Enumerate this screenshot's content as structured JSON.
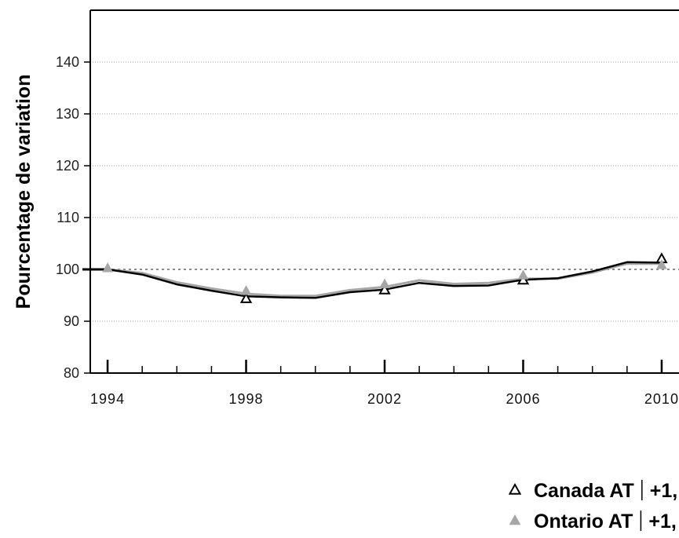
{
  "chart_data": {
    "type": "line",
    "xlabel": "",
    "ylabel": "Pourcentage de variation",
    "xlim": [
      1993.5,
      2010.5
    ],
    "ylim": [
      80,
      150
    ],
    "yticks": [
      80,
      90,
      100,
      110,
      120,
      130,
      140
    ],
    "xticks": [
      1994,
      1998,
      2002,
      2006,
      2010
    ],
    "reference_line": 100,
    "grid": true,
    "legend_position": "bottom-right",
    "series": [
      {
        "name": "Canada AT",
        "legend_value": "+1,",
        "color": "#000000",
        "marker": "open-triangle",
        "x": [
          1994,
          1995,
          1996,
          1997,
          1998,
          1999,
          2000,
          2001,
          2002,
          2003,
          2004,
          2005,
          2006,
          2007,
          2008,
          2009,
          2010
        ],
        "values": [
          100,
          99,
          97.1,
          95.9,
          94.8,
          94.6,
          94.5,
          95.6,
          96.1,
          97.4,
          96.8,
          96.9,
          98,
          98.3,
          99.6,
          101.4,
          101.3
        ],
        "marker_x": [
          1998,
          2002,
          2006,
          2010
        ],
        "marker_values": [
          94.3,
          96,
          97.9,
          102
        ]
      },
      {
        "name": "Ontario AT",
        "legend_value": "+1,",
        "color": "#a6a6a6",
        "marker": "filled-triangle",
        "x": [
          1994,
          1995,
          1996,
          1997,
          1998,
          1999,
          2000,
          2001,
          2002,
          2003,
          2004,
          2005,
          2006,
          2007,
          2008,
          2009,
          2010
        ],
        "values": [
          100,
          99.3,
          97.5,
          96.3,
          95.3,
          94.9,
          94.9,
          96,
          96.6,
          97.9,
          97.2,
          97.4,
          98.2,
          98.2,
          99.4,
          101.1,
          101.1
        ],
        "marker_x": [
          1994,
          1998,
          2002,
          2006,
          2010
        ],
        "marker_values": [
          100.2,
          95.8,
          97.1,
          98.8,
          100.8
        ]
      }
    ]
  }
}
